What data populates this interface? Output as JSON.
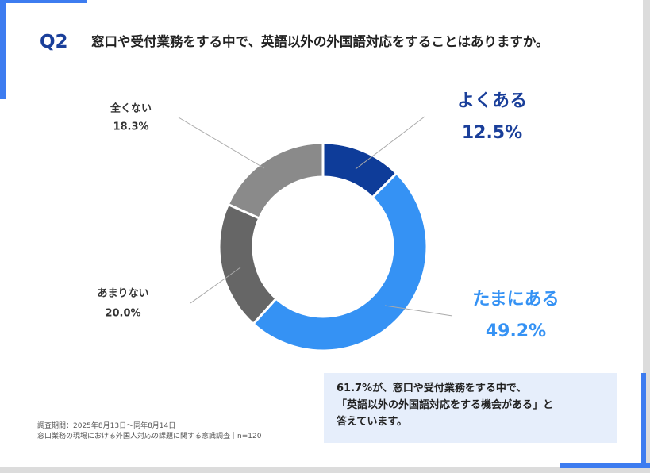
{
  "question_number": "Q2",
  "title": "窓口や受付業務をする中で、英語以外の外国語対応をすることはありますか。",
  "chart_data": {
    "type": "donut",
    "categories": [
      "よくある",
      "たまにある",
      "あまりない",
      "全くない"
    ],
    "values": [
      12.5,
      49.2,
      20.0,
      18.3
    ],
    "value_labels": [
      "12.5%",
      "49.2%",
      "20.0%",
      "18.3%"
    ],
    "colors": [
      "#0e3c99",
      "#3592f4",
      "#666666",
      "#8a8a8a"
    ]
  },
  "callout": [
    "61.7%が、窓口や受付業務をする中で、",
    "「英語以外の外国語対応をする機会がある」と",
    "答えています。"
  ],
  "footnotes": [
    "調査期間：2025年8月13日〜同年8月14日",
    "窓口業務の現場における外国人対応の課題に関する意識調査｜n=120"
  ]
}
